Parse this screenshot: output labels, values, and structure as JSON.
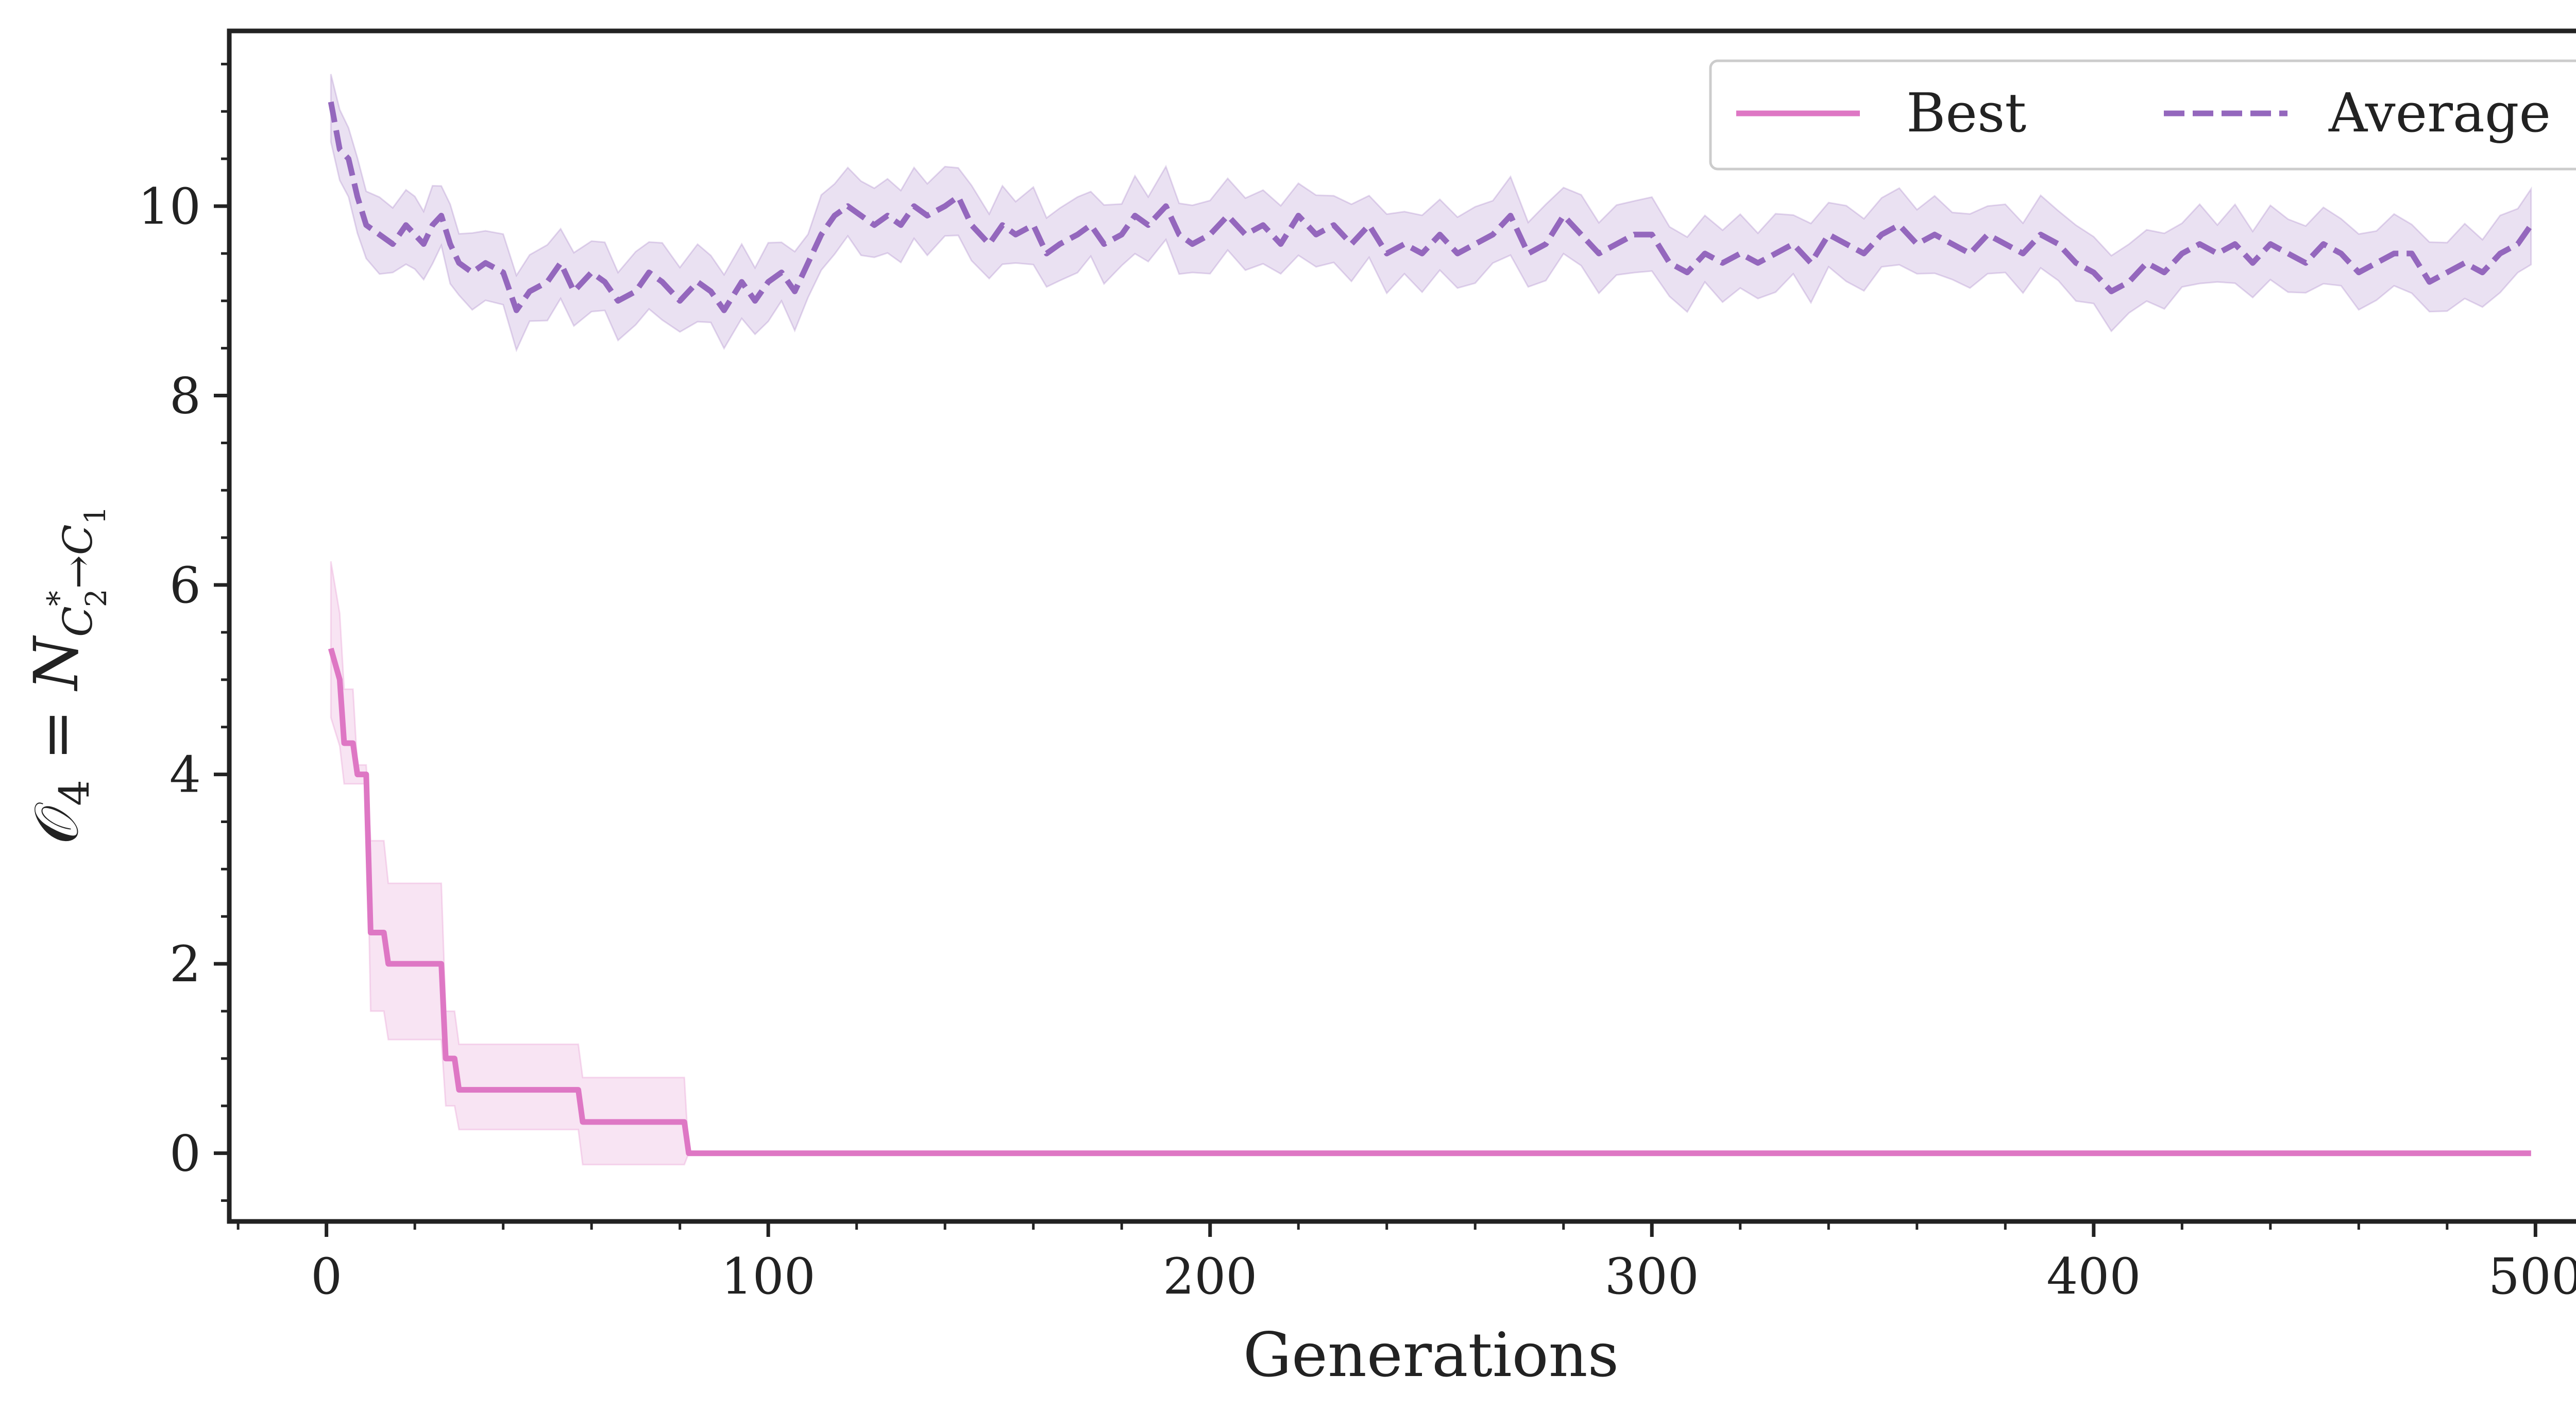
{
  "chart_data": {
    "type": "line",
    "xlabel": "Generations",
    "ylabel_parts": {
      "lhs": "𝒪",
      "lhs_sub": "4",
      "eq": " = N",
      "sub_c2": "C",
      "sub_c2_sub": "2",
      "sub_c2_sup": "*",
      "arrow": "→",
      "sub_c1": "C",
      "sub_c1_sub": "1"
    },
    "xlim": [
      -22,
      522
    ],
    "ylim": [
      -0.72,
      11.85
    ],
    "xticks": [
      0,
      100,
      200,
      300,
      400,
      500
    ],
    "yticks": [
      0,
      2,
      4,
      6,
      8,
      10
    ],
    "grid": false,
    "legend": {
      "placement": "top-right",
      "ncol": 2
    },
    "series": [
      {
        "name": "Best",
        "color": "#de77c4",
        "style": "solid",
        "points": [
          [
            1,
            5.33
          ],
          [
            3,
            5.0
          ],
          [
            4,
            4.33
          ],
          [
            6,
            4.33
          ],
          [
            7,
            4.0
          ],
          [
            9,
            4.0
          ],
          [
            10,
            2.33
          ],
          [
            13,
            2.33
          ],
          [
            14,
            2.0
          ],
          [
            26,
            2.0
          ],
          [
            27,
            1.0
          ],
          [
            29,
            1.0
          ],
          [
            30,
            0.67
          ],
          [
            57,
            0.67
          ],
          [
            58,
            0.33
          ],
          [
            81,
            0.33
          ],
          [
            82,
            0.0
          ],
          [
            499,
            0.0
          ]
        ],
        "band": [
          [
            1,
            4.6,
            6.25
          ],
          [
            3,
            4.3,
            5.7
          ],
          [
            4,
            3.9,
            4.9
          ],
          [
            6,
            3.9,
            4.9
          ],
          [
            7,
            3.9,
            4.1
          ],
          [
            9,
            3.9,
            4.1
          ],
          [
            10,
            1.5,
            3.3
          ],
          [
            13,
            1.5,
            3.3
          ],
          [
            14,
            1.2,
            2.85
          ],
          [
            26,
            1.2,
            2.85
          ],
          [
            27,
            0.5,
            1.5
          ],
          [
            29,
            0.5,
            1.5
          ],
          [
            30,
            0.25,
            1.15
          ],
          [
            57,
            0.25,
            1.15
          ],
          [
            58,
            -0.12,
            0.8
          ],
          [
            81,
            -0.12,
            0.8
          ],
          [
            82,
            0.0,
            0.0
          ],
          [
            499,
            0.0,
            0.0
          ]
        ]
      },
      {
        "name": "Average",
        "color": "#9467bd",
        "style": "dashed",
        "points": [
          [
            1,
            11.1
          ],
          [
            3,
            10.6
          ],
          [
            5,
            10.5
          ],
          [
            7,
            10.1
          ],
          [
            9,
            9.8
          ],
          [
            12,
            9.7
          ],
          [
            15,
            9.6
          ],
          [
            18,
            9.8
          ],
          [
            20,
            9.7
          ],
          [
            22,
            9.6
          ],
          [
            24,
            9.8
          ],
          [
            26,
            9.9
          ],
          [
            28,
            9.6
          ],
          [
            30,
            9.4
          ],
          [
            33,
            9.3
          ],
          [
            36,
            9.4
          ],
          [
            40,
            9.3
          ],
          [
            43,
            8.9
          ],
          [
            46,
            9.1
          ],
          [
            50,
            9.2
          ],
          [
            53,
            9.4
          ],
          [
            56,
            9.1
          ],
          [
            60,
            9.3
          ],
          [
            63,
            9.2
          ],
          [
            66,
            9.0
          ],
          [
            70,
            9.1
          ],
          [
            73,
            9.3
          ],
          [
            76,
            9.2
          ],
          [
            80,
            9.0
          ],
          [
            84,
            9.2
          ],
          [
            87,
            9.1
          ],
          [
            90,
            8.9
          ],
          [
            94,
            9.2
          ],
          [
            97,
            9.0
          ],
          [
            100,
            9.2
          ],
          [
            103,
            9.3
          ],
          [
            106,
            9.1
          ],
          [
            109,
            9.4
          ],
          [
            112,
            9.7
          ],
          [
            115,
            9.9
          ],
          [
            118,
            10.0
          ],
          [
            121,
            9.9
          ],
          [
            124,
            9.8
          ],
          [
            127,
            9.9
          ],
          [
            130,
            9.8
          ],
          [
            133,
            10.0
          ],
          [
            136,
            9.9
          ],
          [
            140,
            10.0
          ],
          [
            143,
            10.1
          ],
          [
            146,
            9.8
          ],
          [
            150,
            9.6
          ],
          [
            153,
            9.8
          ],
          [
            156,
            9.7
          ],
          [
            160,
            9.8
          ],
          [
            163,
            9.5
          ],
          [
            166,
            9.6
          ],
          [
            170,
            9.7
          ],
          [
            173,
            9.8
          ],
          [
            176,
            9.6
          ],
          [
            180,
            9.7
          ],
          [
            183,
            9.9
          ],
          [
            186,
            9.8
          ],
          [
            190,
            10.0
          ],
          [
            193,
            9.7
          ],
          [
            196,
            9.6
          ],
          [
            200,
            9.7
          ],
          [
            204,
            9.9
          ],
          [
            208,
            9.7
          ],
          [
            212,
            9.8
          ],
          [
            216,
            9.6
          ],
          [
            220,
            9.9
          ],
          [
            224,
            9.7
          ],
          [
            228,
            9.8
          ],
          [
            232,
            9.6
          ],
          [
            236,
            9.8
          ],
          [
            240,
            9.5
          ],
          [
            244,
            9.6
          ],
          [
            248,
            9.5
          ],
          [
            252,
            9.7
          ],
          [
            256,
            9.5
          ],
          [
            260,
            9.6
          ],
          [
            264,
            9.7
          ],
          [
            268,
            9.9
          ],
          [
            272,
            9.5
          ],
          [
            276,
            9.6
          ],
          [
            280,
            9.9
          ],
          [
            284,
            9.7
          ],
          [
            288,
            9.5
          ],
          [
            292,
            9.6
          ],
          [
            296,
            9.7
          ],
          [
            300,
            9.7
          ],
          [
            304,
            9.4
          ],
          [
            308,
            9.3
          ],
          [
            312,
            9.5
          ],
          [
            316,
            9.4
          ],
          [
            320,
            9.5
          ],
          [
            324,
            9.4
          ],
          [
            328,
            9.5
          ],
          [
            332,
            9.6
          ],
          [
            336,
            9.4
          ],
          [
            340,
            9.7
          ],
          [
            344,
            9.6
          ],
          [
            348,
            9.5
          ],
          [
            352,
            9.7
          ],
          [
            356,
            9.8
          ],
          [
            360,
            9.6
          ],
          [
            364,
            9.7
          ],
          [
            368,
            9.6
          ],
          [
            372,
            9.5
          ],
          [
            376,
            9.7
          ],
          [
            380,
            9.6
          ],
          [
            384,
            9.5
          ],
          [
            388,
            9.7
          ],
          [
            392,
            9.6
          ],
          [
            396,
            9.4
          ],
          [
            400,
            9.3
          ],
          [
            404,
            9.1
          ],
          [
            408,
            9.2
          ],
          [
            412,
            9.4
          ],
          [
            416,
            9.3
          ],
          [
            420,
            9.5
          ],
          [
            424,
            9.6
          ],
          [
            428,
            9.5
          ],
          [
            432,
            9.6
          ],
          [
            436,
            9.4
          ],
          [
            440,
            9.6
          ],
          [
            444,
            9.5
          ],
          [
            448,
            9.4
          ],
          [
            452,
            9.6
          ],
          [
            456,
            9.5
          ],
          [
            460,
            9.3
          ],
          [
            464,
            9.4
          ],
          [
            468,
            9.5
          ],
          [
            472,
            9.5
          ],
          [
            476,
            9.2
          ],
          [
            480,
            9.3
          ],
          [
            484,
            9.4
          ],
          [
            488,
            9.3
          ],
          [
            492,
            9.5
          ],
          [
            496,
            9.6
          ],
          [
            499,
            9.8
          ]
        ],
        "band_halfwidth": 0.42
      }
    ]
  }
}
